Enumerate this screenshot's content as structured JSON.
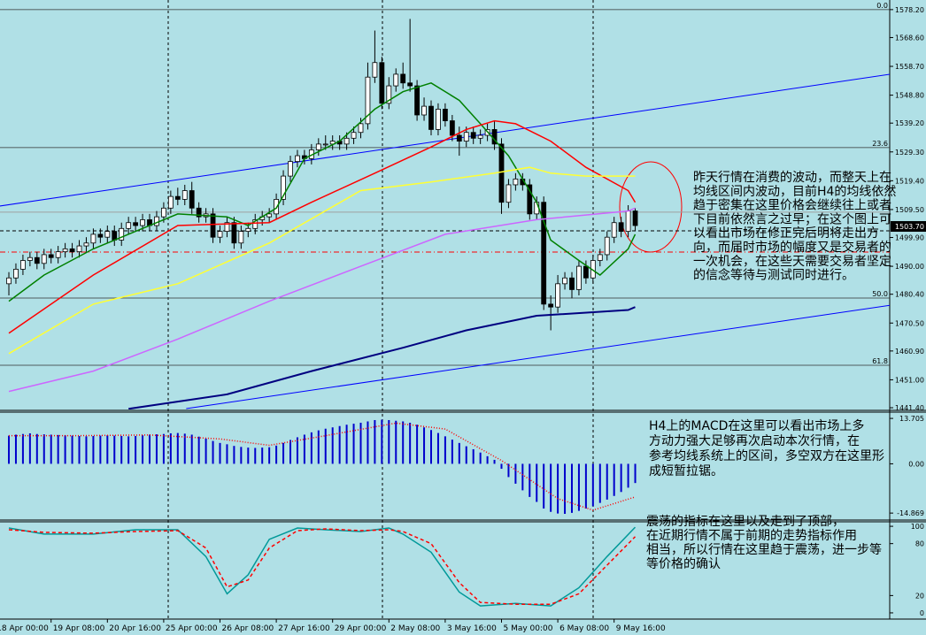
{
  "chart_data": [
    {
      "type": "candlestick",
      "x": [
        0,
        1,
        2,
        3,
        4,
        5,
        6,
        7,
        8,
        9,
        10,
        11,
        12,
        13,
        14,
        15,
        16,
        17,
        18,
        19,
        20,
        21,
        22,
        23,
        24,
        25,
        26,
        27,
        28,
        29,
        30,
        31,
        32,
        33,
        34,
        35,
        36,
        37,
        38,
        39,
        40,
        41,
        42,
        43,
        44,
        45,
        46,
        47,
        48,
        49,
        50,
        51,
        52,
        53,
        54,
        55,
        56,
        57,
        58,
        59,
        60,
        61,
        62,
        63,
        64,
        65,
        66,
        67,
        68,
        69,
        70,
        71,
        72,
        73,
        74,
        75,
        76,
        77,
        78,
        79,
        80,
        81,
        82,
        83,
        84,
        85,
        86,
        87,
        88,
        89
      ],
      "open": [
        1484,
        1486,
        1489,
        1492,
        1493,
        1491,
        1494,
        1493,
        1495,
        1496,
        1495,
        1497,
        1498,
        1501,
        1500,
        1502,
        1499,
        1503,
        1505,
        1504,
        1506,
        1504,
        1507,
        1510,
        1514,
        1513,
        1516,
        1510,
        1507,
        1508,
        1500,
        1502,
        1505,
        1498,
        1502,
        1503,
        1506,
        1507,
        1508,
        1513,
        1521,
        1526,
        1528,
        1527,
        1530,
        1532,
        1532,
        1533,
        1532,
        1534,
        1536,
        1539,
        1555,
        1560,
        1546,
        1552,
        1556,
        1553,
        1552,
        1542,
        1545,
        1537,
        1544,
        1540,
        1535,
        1533,
        1536,
        1534,
        1535,
        1537,
        1532,
        1512,
        1518,
        1520,
        1518,
        1508,
        1512,
        1477,
        1476,
        1484,
        1486,
        1482,
        1490,
        1486,
        1492,
        1494,
        1500,
        1505,
        1502,
        1509
      ],
      "high": [
        1488,
        1491,
        1494,
        1495,
        1495,
        1496,
        1496,
        1497,
        1498,
        1498,
        1499,
        1500,
        1503,
        1503,
        1504,
        1504,
        1505,
        1507,
        1507,
        1508,
        1508,
        1509,
        1512,
        1516,
        1517,
        1518,
        1519,
        1512,
        1510,
        1510,
        1504,
        1507,
        1507,
        1504,
        1505,
        1508,
        1509,
        1510,
        1515,
        1523,
        1528,
        1530,
        1530,
        1532,
        1534,
        1535,
        1535,
        1535,
        1536,
        1538,
        1541,
        1560,
        1571,
        1562,
        1555,
        1558,
        1560,
        1575,
        1554,
        1548,
        1547,
        1546,
        1546,
        1542,
        1538,
        1538,
        1538,
        1537,
        1539,
        1540,
        1534,
        1520,
        1522,
        1522,
        1520,
        1514,
        1514,
        1480,
        1487,
        1488,
        1488,
        1492,
        1492,
        1494,
        1496,
        1502,
        1507,
        1507,
        1511,
        1510
      ],
      "low": [
        1480,
        1484,
        1487,
        1490,
        1489,
        1489,
        1491,
        1491,
        1493,
        1493,
        1493,
        1495,
        1496,
        1498,
        1498,
        1497,
        1497,
        1501,
        1502,
        1502,
        1502,
        1502,
        1505,
        1508,
        1511,
        1511,
        1508,
        1505,
        1505,
        1498,
        1498,
        1500,
        1496,
        1496,
        1500,
        1501,
        1504,
        1505,
        1506,
        1511,
        1519,
        1524,
        1525,
        1525,
        1528,
        1530,
        1530,
        1530,
        1530,
        1532,
        1534,
        1537,
        1553,
        1544,
        1544,
        1550,
        1551,
        1550,
        1540,
        1540,
        1535,
        1535,
        1538,
        1533,
        1528,
        1531,
        1532,
        1532,
        1533,
        1530,
        1508,
        1510,
        1516,
        1516,
        1506,
        1506,
        1475,
        1468,
        1474,
        1482,
        1479,
        1480,
        1484,
        1484,
        1490,
        1492,
        1498,
        1500,
        1500,
        1502
      ],
      "close": [
        1486,
        1489,
        1492,
        1493,
        1491,
        1494,
        1493,
        1495,
        1496,
        1495,
        1497,
        1498,
        1501,
        1500,
        1502,
        1499,
        1503,
        1505,
        1504,
        1506,
        1504,
        1507,
        1510,
        1514,
        1513,
        1516,
        1510,
        1507,
        1508,
        1500,
        1502,
        1505,
        1498,
        1502,
        1503,
        1506,
        1507,
        1508,
        1513,
        1521,
        1526,
        1528,
        1527,
        1530,
        1532,
        1532,
        1533,
        1532,
        1534,
        1536,
        1539,
        1555,
        1560,
        1546,
        1552,
        1556,
        1553,
        1552,
        1542,
        1545,
        1537,
        1544,
        1540,
        1535,
        1533,
        1536,
        1534,
        1535,
        1537,
        1532,
        1512,
        1518,
        1520,
        1518,
        1508,
        1512,
        1477,
        1476,
        1484,
        1486,
        1482,
        1490,
        1486,
        1492,
        1494,
        1500,
        1505,
        1502,
        1509,
        1504
      ],
      "up_color": "#ffffff",
      "down_color": "#000000",
      "xlim": [
        -1.26,
        125.16
      ],
      "ylim": [
        1440.8,
        1581.5
      ],
      "yticks": [
        {
          "value": 1578.2,
          "label": "1578.20"
        },
        {
          "value": 1568.6,
          "label": "1568.60"
        },
        {
          "value": 1558.7,
          "label": "1558.70"
        },
        {
          "value": 1548.8,
          "label": "1548.80"
        },
        {
          "value": 1539.2,
          "label": "1539.20"
        },
        {
          "value": 1529.3,
          "label": "1529.30"
        },
        {
          "value": 1519.4,
          "label": "1519.40"
        },
        {
          "value": 1509.5,
          "label": "1509.50"
        },
        {
          "value": 1499.9,
          "label": "1499.90"
        },
        {
          "value": 1490,
          "label": "1490.00"
        },
        {
          "value": 1480.4,
          "label": "1480.40"
        },
        {
          "value": 1470.5,
          "label": "1470.50"
        },
        {
          "value": 1460.9,
          "label": "1460.90"
        },
        {
          "value": 1451,
          "label": "1451.00"
        },
        {
          "value": 1441.4,
          "label": "1441.40"
        }
      ],
      "series": [
        {
          "color": "#008000",
          "x": [
            0,
            5,
            12,
            18,
            24,
            31,
            34,
            38,
            42,
            47,
            52,
            56,
            60,
            64,
            67,
            71,
            75,
            77,
            81,
            84,
            88,
            89
          ],
          "values": [
            1478,
            1487,
            1496,
            1502,
            1508,
            1507,
            1504,
            1510,
            1527,
            1533,
            1544,
            1550,
            1553,
            1547,
            1539,
            1528,
            1512,
            1499,
            1492,
            1487,
            1496,
            1501
          ]
        },
        {
          "color": "#ff0000",
          "x": [
            0,
            12,
            24,
            37,
            43,
            52,
            60,
            65,
            69,
            72,
            77,
            82,
            88,
            89
          ],
          "values": [
            1467,
            1487,
            1504,
            1505,
            1512,
            1522,
            1531,
            1537,
            1540,
            1539,
            1533,
            1524,
            1516,
            1512
          ]
        },
        {
          "color": "#ffff33",
          "x": [
            0,
            12,
            24,
            37,
            50,
            60,
            69,
            74,
            77,
            82,
            89
          ],
          "values": [
            1460,
            1477,
            1484,
            1498,
            1516,
            1519,
            1522,
            1524,
            1522,
            1521,
            1521
          ]
        },
        {
          "color": "#cc66ff",
          "x": [
            0,
            12,
            24,
            37,
            50,
            62,
            75,
            88,
            89
          ],
          "values": [
            1447,
            1454,
            1465,
            1478,
            1490,
            1501,
            1506,
            1509,
            1510
          ]
        },
        {
          "color": "#000080",
          "x": [
            17,
            31,
            43,
            56,
            65,
            75,
            88,
            89
          ],
          "values": [
            1441,
            1446,
            1454,
            1462,
            1468,
            1473,
            1475,
            1476
          ]
        }
      ],
      "trendlines": [
        {
          "color": "#0000ff",
          "x": [
            -1.3,
            125.2
          ],
          "values": [
            1510.7,
            1556.0
          ]
        },
        {
          "color": "#0000ff",
          "x": [
            25.2,
            125.2
          ],
          "values": [
            1441.1,
            1476.6
          ]
        }
      ],
      "hlines": [
        {
          "value": 1508.6,
          "color": "#a0a0a0",
          "style": "solid"
        },
        {
          "value": 1502.2,
          "color": "#000000",
          "style": "dashed"
        },
        {
          "value": 1494.9,
          "color": "#ff0000",
          "style": "dashdot"
        }
      ],
      "fibo": [
        {
          "value": 1578.2,
          "label": "0.0"
        },
        {
          "value": 1530.8,
          "label": "23.6"
        },
        {
          "value": 1479.1,
          "label": "50.0"
        },
        {
          "value": 1456.0,
          "label": "61.8"
        }
      ],
      "last_price": {
        "value": 1503.7,
        "label": "1503.70"
      },
      "annotation": {
        "lines": [
          "昨天行情在消费的波动，而整天上在",
          "均线区间内波动，目前H4的均线依然",
          "趋于密集在这里价格会继续往上或者",
          "下目前依然言之过早；在这个图上可",
          "以看出市场在修正完后明将走出方",
          "向，而届时市场的幅度又是交易者的",
          "一次机会，在这些天需要交易者坚定",
          "的信念等待与测试同时进行。"
        ]
      }
    },
    {
      "type": "bar",
      "x": [
        0,
        1,
        2,
        3,
        4,
        5,
        6,
        7,
        8,
        9,
        10,
        11,
        12,
        13,
        14,
        15,
        16,
        17,
        18,
        19,
        20,
        21,
        22,
        23,
        24,
        25,
        26,
        27,
        28,
        29,
        30,
        31,
        32,
        33,
        34,
        35,
        36,
        37,
        38,
        39,
        40,
        41,
        42,
        43,
        44,
        45,
        46,
        47,
        48,
        49,
        50,
        51,
        52,
        53,
        54,
        55,
        56,
        57,
        58,
        59,
        60,
        61,
        62,
        63,
        64,
        65,
        66,
        67,
        68,
        69,
        70,
        71,
        72,
        73,
        74,
        75,
        76,
        77,
        78,
        79,
        80,
        81,
        82,
        83,
        84,
        85,
        86,
        87,
        88,
        89
      ],
      "values": [
        8.5,
        8.8,
        9.0,
        9.2,
        9.0,
        8.9,
        8.8,
        8.7,
        8.6,
        8.5,
        8.4,
        8.3,
        8.4,
        8.5,
        8.6,
        8.5,
        8.4,
        8.3,
        8.4,
        8.6,
        8.8,
        8.9,
        9.0,
        9.2,
        9.3,
        9.1,
        8.8,
        8.2,
        7.6,
        6.9,
        6.3,
        5.9,
        5.4,
        5.1,
        4.9,
        4.8,
        4.9,
        5.0,
        5.5,
        6.3,
        7.2,
        8.0,
        8.8,
        9.5,
        10.1,
        10.6,
        11.0,
        11.4,
        11.8,
        12.1,
        12.4,
        12.8,
        13.2,
        13.3,
        13.2,
        13.0,
        12.8,
        12.4,
        11.8,
        11.0,
        10.2,
        9.3,
        8.3,
        7.3,
        6.3,
        5.3,
        4.4,
        3.4,
        2.3,
        1.2,
        -1.5,
        -4.0,
        -6.0,
        -8.0,
        -10.0,
        -11.5,
        -13.5,
        -14.5,
        -15.0,
        -15.1,
        -14.8,
        -14.2,
        -13.5,
        -12.8,
        -11.8,
        -10.8,
        -9.7,
        -8.5,
        -7.2,
        -5.8
      ],
      "color": "#0000cc",
      "series": [
        {
          "color": "#ff0000",
          "style": "dotted",
          "x": [
            0,
            10,
            20,
            30,
            37,
            45,
            55,
            62,
            70,
            78,
            83,
            89
          ],
          "values": [
            8.5,
            8.5,
            8.7,
            7.5,
            5.6,
            8.5,
            12.3,
            10.5,
            1.0,
            -10.5,
            -14.0,
            -10.0
          ]
        }
      ],
      "xlim": [
        -1.26,
        125.16
      ],
      "ylim": [
        -16.7,
        15.6
      ],
      "yticks": [
        13.705,
        {
          "value": 0,
          "label": "0.00"
        },
        -14.869
      ],
      "annotation": {
        "lines": [
          "H4上的MACD在这里可以看出市场上多",
          "方动力强大足够再次启动本次行情，在",
          "参考均线系统上的区间，多空双方在这里形",
          "成短暂拉锯。"
        ]
      }
    },
    {
      "type": "line",
      "series": [
        {
          "color": "#009999",
          "style": "solid",
          "x": [
            0,
            5,
            12,
            18,
            24,
            28,
            31,
            34,
            37,
            41,
            45,
            50,
            54,
            56,
            60,
            64,
            67,
            72,
            77,
            81,
            85,
            89
          ],
          "values": [
            98,
            91,
            91,
            96,
            96,
            65,
            22,
            44,
            85,
            98,
            96,
            94,
            98,
            91,
            70,
            24,
            8,
            11,
            8,
            29,
            65,
            99
          ]
        },
        {
          "color": "#ff0000",
          "style": "dashed",
          "x": [
            0,
            5,
            12,
            18,
            24,
            28,
            31,
            34,
            37,
            41,
            45,
            50,
            54,
            56,
            60,
            64,
            67,
            72,
            77,
            81,
            85,
            89
          ],
          "values": [
            96,
            93,
            92,
            94,
            95,
            75,
            30,
            38,
            75,
            95,
            97,
            95,
            96,
            94,
            80,
            35,
            12,
            10,
            10,
            22,
            55,
            88
          ]
        }
      ],
      "xlim": [
        -1.26,
        125.16
      ],
      "ylim": [
        -7.2,
        105.2
      ],
      "yticks": [
        100,
        80,
        20,
        0
      ],
      "xticks": [
        {
          "value": -2,
          "label": "18 Apr 00:00"
        },
        {
          "value": 6,
          "label": "19 Apr 08:00"
        },
        {
          "value": 14,
          "label": "20 Apr 16:00"
        },
        {
          "value": 22,
          "label": "25 Apr 00:00"
        },
        {
          "value": 30,
          "label": "26 Apr 08:00"
        },
        {
          "value": 38,
          "label": "27 Apr 16:00"
        },
        {
          "value": 46,
          "label": "29 Apr 00:00"
        },
        {
          "value": 54,
          "label": "2 May 08:00"
        },
        {
          "value": 62,
          "label": "3 May 16:00"
        },
        {
          "value": 70,
          "label": "5 May 00:00"
        },
        {
          "value": 78,
          "label": "6 May 08:00"
        },
        {
          "value": 86,
          "label": "9 May 16:00"
        }
      ],
      "annotation": {
        "lines": [
          "震荡的指标在这里以及走到了顶部，",
          "在近期行情不属于前期的走势指标作用",
          "相当，所以行情在这里趋于震荡，进一步等",
          "等价格的确认"
        ]
      }
    }
  ]
}
